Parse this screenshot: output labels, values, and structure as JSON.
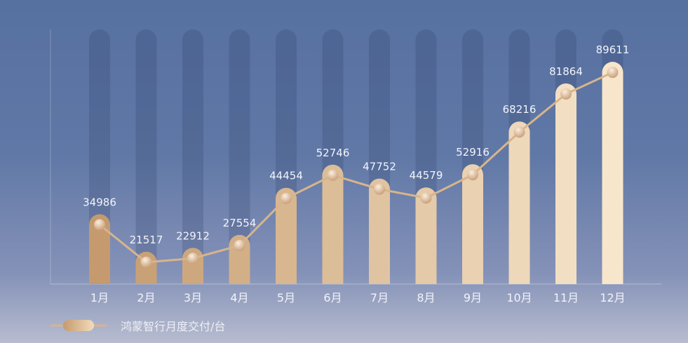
{
  "chart_data": {
    "type": "bar",
    "categories": [
      "1月",
      "2月",
      "3月",
      "4月",
      "5月",
      "6月",
      "7月",
      "8月",
      "9月",
      "10月",
      "11月",
      "12月"
    ],
    "series": [
      {
        "name": "鸿蒙智行月度交付/台",
        "values": [
          34986,
          21517,
          22912,
          27554,
          44454,
          52746,
          47752,
          44579,
          52916,
          68216,
          81864,
          89611
        ]
      }
    ],
    "data_labels": [
      "34986",
      "21517",
      "22912",
      "27554",
      "44454",
      "52746",
      "47752",
      "44579",
      "52916",
      "68216",
      "81864",
      "89611"
    ],
    "ylim": [
      13700,
      105000
    ],
    "grid": false,
    "legend_position": "bottom-left",
    "colors": {
      "bar_start": "#c49a6e",
      "bar_end": "#f7e6cb",
      "line": "#d8b48c",
      "background_top": "#5670a0",
      "background_bottom": "#b7bccf"
    }
  }
}
